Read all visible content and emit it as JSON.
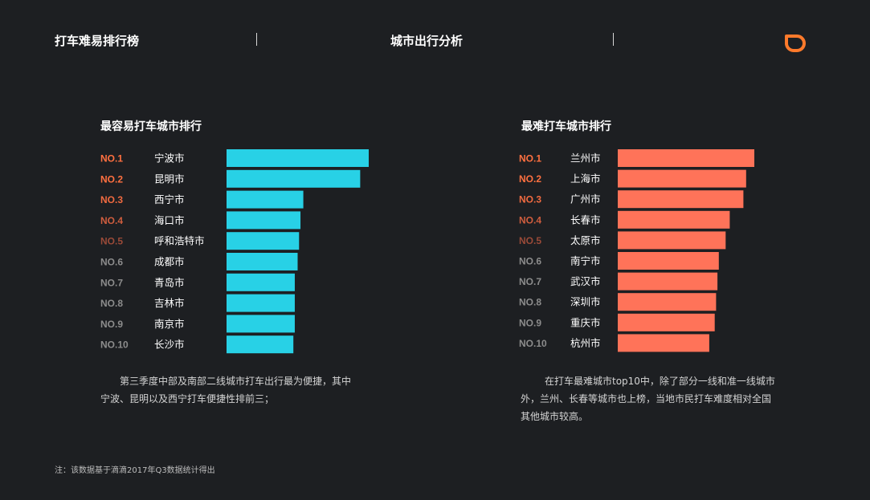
{
  "header": {
    "left_title": "打车难易排行榜",
    "center_title": "城市出行分析"
  },
  "brand": {
    "logo_icon": "didi-logo-icon",
    "color": "#ff7a2b"
  },
  "colors": {
    "easy_bar": "#28d1e6",
    "hard_bar": "#ff7359",
    "rank_colors": [
      "#ff7040",
      "#ff7040",
      "#f06a40",
      "#cf5d3e",
      "#9a4a38",
      "#8c8c8c",
      "#8c8c8c",
      "#8c8c8c",
      "#8c8c8c",
      "#8c8c8c"
    ]
  },
  "chart_data": [
    {
      "type": "bar",
      "orientation": "horizontal",
      "title": "最容易打车城市排行",
      "ranks": [
        "NO.1",
        "NO.2",
        "NO.3",
        "NO.4",
        "NO.5",
        "NO.6",
        "NO.7",
        "NO.8",
        "NO.9",
        "NO.10"
      ],
      "categories": [
        "宁波市",
        "昆明市",
        "西宁市",
        "海口市",
        "呼和浩特市",
        "成都市",
        "青岛市",
        "吉林市",
        "南京市",
        "长沙市"
      ],
      "values": [
        100,
        94,
        54,
        52,
        51,
        50,
        48,
        48,
        48,
        47
      ],
      "xlim": [
        0,
        100
      ]
    },
    {
      "type": "bar",
      "orientation": "horizontal",
      "title": "最难打车城市排行",
      "ranks": [
        "NO.1",
        "NO.2",
        "NO.3",
        "NO.4",
        "NO.5",
        "NO.6",
        "NO.7",
        "NO.8",
        "NO.9",
        "NO.10"
      ],
      "categories": [
        "兰州市",
        "上海市",
        "广州市",
        "长春市",
        "太原市",
        "南宁市",
        "武汉市",
        "深圳市",
        "重庆市",
        "杭州市"
      ],
      "values": [
        100,
        94,
        92,
        82,
        79,
        74,
        73,
        72,
        71,
        67
      ],
      "xlim": [
        0,
        100
      ]
    }
  ],
  "descriptions": {
    "left_line1": "第三季度中部及南部二线城市打车出行最为便捷，其中",
    "left_line2": "宁波、昆明以及西宁打车便捷性排前三；",
    "right_line1": "在打车最难城市top10中，除了部分一线和准一线城市",
    "right_line2": "外，兰州、长春等城市也上榜，当地市民打车难度相对全国",
    "right_line3": "其他城市较高。"
  },
  "footnote": "注：该数据基于滴滴2017年Q3数据统计得出"
}
